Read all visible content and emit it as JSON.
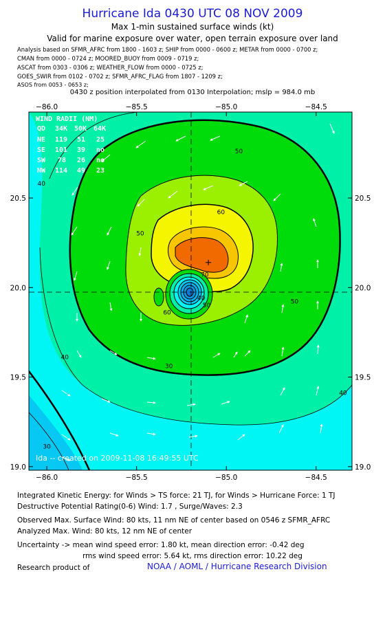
{
  "header": {
    "title": "Hurricane Ida 0430 UTC 08 NOV 2009",
    "subtitle1": "Max 1-min sustained surface winds (kt)",
    "subtitle2": "Valid for marine exposure over water, open terrain exposure over land",
    "analysis_lines": [
      "Analysis based on   SFMR_AFRC from 1800 - 1603 z;  SHIP from 0000 - 0600 z;  METAR from 0000 - 0700 z;",
      "CMAN from 0000 - 0724 z;  MOORED_BUOY from 0009 - 0719 z;",
      "ASCAT from 0303 - 0306 z;  WEATHER_FLOW from 0000 - 0725 z;",
      "GOES_SWIR from 0102 - 0702 z;  SFMR_AFRC_FLAG from 1807 - 1209 z;",
      "ASOS from 0053 - 0653 z;"
    ],
    "interpolation": "0430 z position interpolated from 0130 Interpolation; mslp = 984.0 mb"
  },
  "chart_data": {
    "type": "contour",
    "x_ticks": [
      -86.0,
      -85.5,
      -85.0,
      -84.5
    ],
    "y_ticks": [
      19.0,
      19.5,
      20.0,
      20.5
    ],
    "x_range": [
      -86.1,
      -84.3
    ],
    "y_range": [
      18.98,
      20.98
    ],
    "center": {
      "lon": -85.15,
      "lat": 19.97
    },
    "max_wind_marker": {
      "lon": -85.1,
      "lat": 20.14
    },
    "contour_levels_kt": [
      40,
      50,
      60,
      70
    ],
    "contour_labels": [
      {
        "text": "50",
        "lon": -84.93,
        "lat": 20.75
      },
      {
        "text": "40",
        "lon": -86.03,
        "lat": 20.57
      },
      {
        "text": "60",
        "lon": -85.03,
        "lat": 20.41
      },
      {
        "text": "50",
        "lon": -85.48,
        "lat": 20.29
      },
      {
        "text": "70",
        "lon": -85.12,
        "lat": 20.06
      },
      {
        "text": "60",
        "lon": -85.33,
        "lat": 19.85
      },
      {
        "text": "50",
        "lon": -85.11,
        "lat": 19.89
      },
      {
        "text": "40",
        "lon": -85.14,
        "lat": 19.93
      },
      {
        "text": "50",
        "lon": -84.62,
        "lat": 19.91
      },
      {
        "text": "40",
        "lon": -85.9,
        "lat": 19.6
      },
      {
        "text": "30",
        "lon": -85.32,
        "lat": 19.55
      },
      {
        "text": "40",
        "lon": -84.35,
        "lat": 19.4
      },
      {
        "text": "30",
        "lon": -86.0,
        "lat": 19.1
      }
    ],
    "colors": {
      "lt30": "#06c8f2",
      "30_40": "#00f5f5",
      "40_50": "#00f0a8",
      "50_60": "#00dc0a",
      "60_70": "#9bef00",
      "70_80": "#f5f500",
      "80_90": "#f7c600",
      "90_100": "#fa8a00",
      "100_110": "#f06a00"
    },
    "wind_radii": {
      "title": "WIND RADII (NM)",
      "header": [
        "QD",
        "34K",
        "50K",
        "64K"
      ],
      "rows": [
        [
          "NE",
          "119",
          "51",
          "25"
        ],
        [
          "SE",
          "101",
          "39",
          "no"
        ],
        [
          "SW",
          "78",
          "26",
          "no"
        ],
        [
          "NW",
          "114",
          "49",
          "23"
        ]
      ]
    },
    "created_label": "Ida -- created on 2009-11-08 16:49:55 UTC"
  },
  "footer": {
    "ike": "Integrated Kinetic Energy:  for Winds > TS force: 21 TJ,  for Winds > Hurricane Force: 1 TJ",
    "dpr": "Destructive Potential Rating(0-6)   Wind: 1.7 , Surge/Waves: 2.3",
    "obs_max": "Observed Max. Surface Wind: 80 kts, 11 nm NE of center based on 0546 z SFMR_AFRC",
    "an_max": "Analyzed Max. Wind: 80 kts, 12 nm NE of center",
    "unc1": "Uncertainty -> mean wind speed error: 1.80 kt,   mean direction error:  -0.42 deg",
    "unc2": "rms wind speed error: 5.64 kt,   rms direction error: 10.22 deg",
    "research": "Research product of",
    "credit": "NOAA / AOML / Hurricane Research Division"
  }
}
